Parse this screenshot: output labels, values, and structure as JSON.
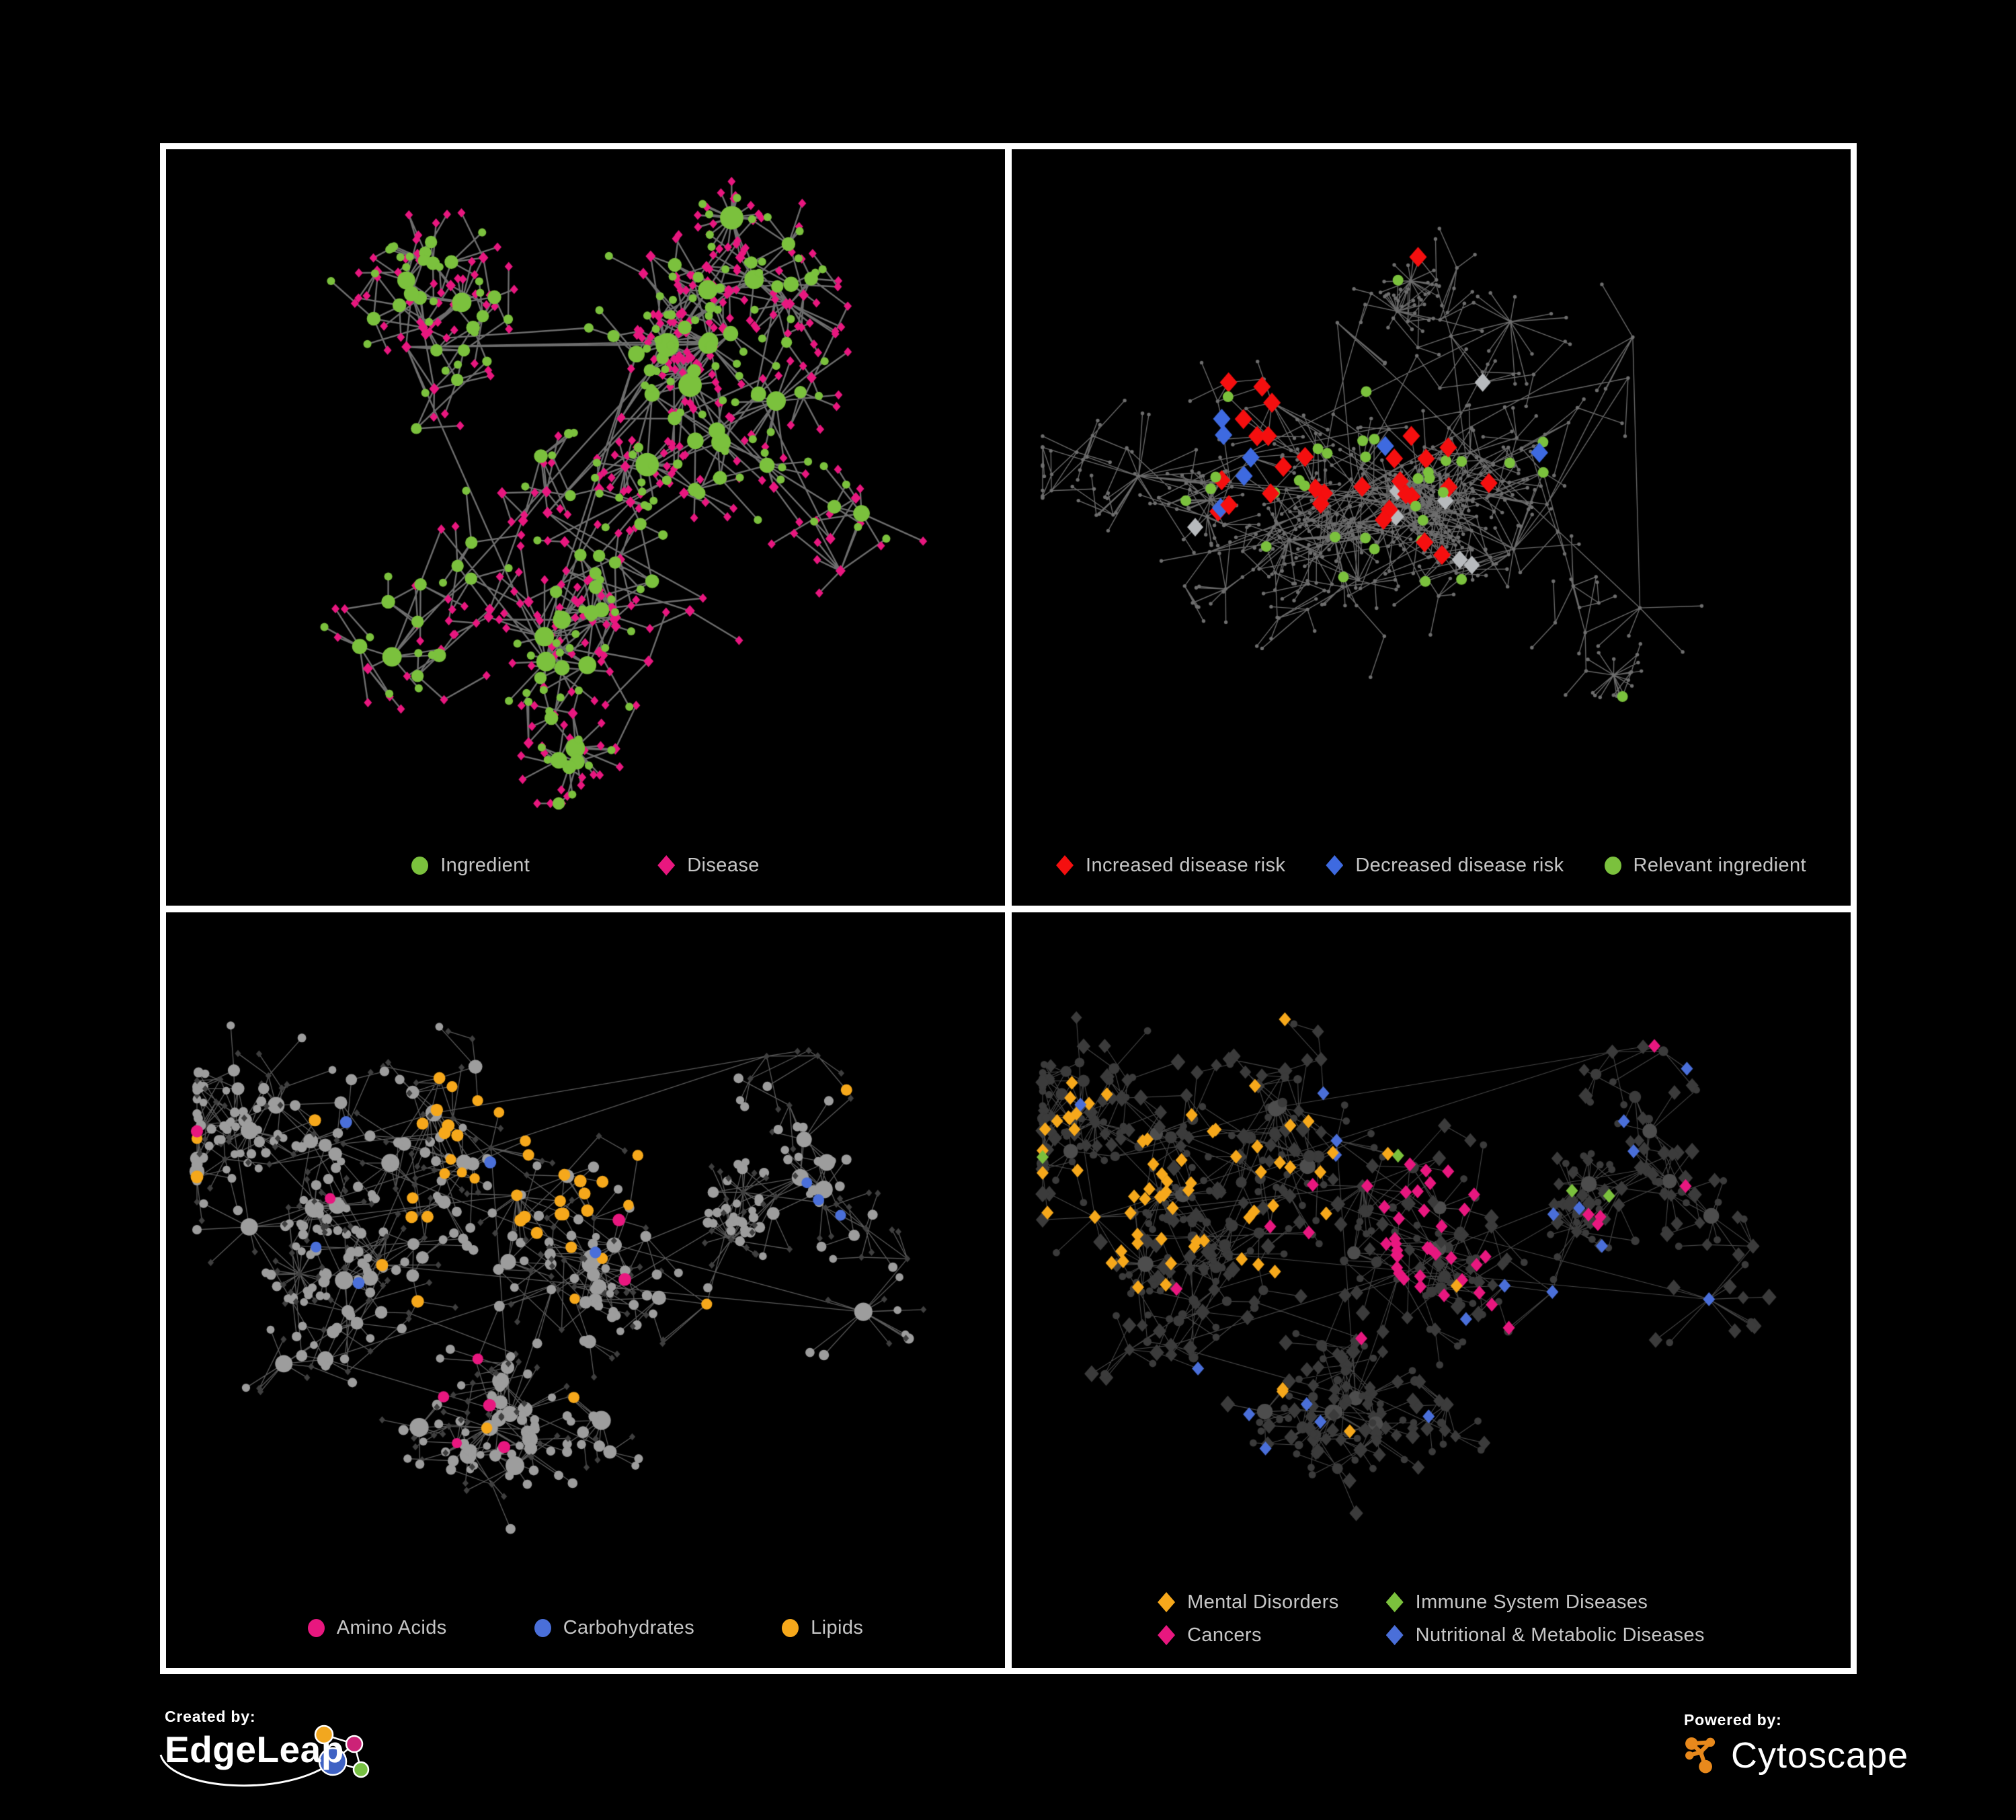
{
  "figure": {
    "bg": "#000000",
    "frame": "#ffffff",
    "legend_text_color": "#c6c6c6"
  },
  "panels": [
    {
      "id": "ingredient-disease-network",
      "legend": {
        "columns": 1,
        "items": [
          {
            "key": "ingredient",
            "shape": "circle",
            "color": "#7bc13d",
            "label": "Ingredient"
          },
          {
            "key": "disease",
            "shape": "diamond",
            "color": "#e8177f",
            "label": "Disease"
          }
        ]
      },
      "network": {
        "mode": "bipartite",
        "seed": 41,
        "styleSeed": 101,
        "nodes": 560,
        "hubs": 16,
        "branch": 4,
        "step": 74,
        "recurse": 0.55,
        "bursts": 5,
        "cross": 70,
        "edge": {
          "color": "#7a7a7a",
          "width": 2.4,
          "alpha": 0.9
        },
        "palette": {
          "ingredient": "#7bc13d",
          "disease": "#e8177f"
        }
      }
    },
    {
      "id": "disease-risk-network",
      "legend": {
        "columns": 1,
        "items": [
          {
            "key": "increased-risk",
            "shape": "diamond",
            "color": "#f50f0f",
            "label": "Increased disease risk"
          },
          {
            "key": "decreased-risk",
            "shape": "diamond",
            "color": "#3e6ae0",
            "label": "Decreased disease risk"
          },
          {
            "key": "relevant-ingredient",
            "shape": "circle",
            "color": "#7bc13d",
            "label": "Relevant ingredient"
          }
        ]
      },
      "network": {
        "mode": "risk",
        "seed": 77,
        "styleSeed": 202,
        "nodes": 680,
        "hubs": 18,
        "branch": 4,
        "step": 66,
        "recurse": 0.6,
        "bursts": 6,
        "cross": 60,
        "edge": {
          "color": "#6f6f6f",
          "width": 1.4,
          "alpha": 0.95
        },
        "palette": {
          "base": "#6e6e6e",
          "increased": "#f50f0f",
          "decreased": "#3e6ae0",
          "neutral": "#b7babd",
          "ingredient": "#7bc13d"
        },
        "counts": {
          "increased": 30,
          "decreased": 7,
          "neutral": 7,
          "ingredient": 34
        }
      }
    },
    {
      "id": "nutrient-class-network",
      "legend": {
        "columns": 1,
        "items": [
          {
            "key": "amino-acids",
            "shape": "circle",
            "color": "#e8177f",
            "label": "Amino Acids"
          },
          {
            "key": "carbohydrates",
            "shape": "circle",
            "color": "#4a6fd9",
            "label": "Carbohydrates"
          },
          {
            "key": "lipids",
            "shape": "circle",
            "color": "#f6a81b",
            "label": "Lipids"
          }
        ]
      },
      "network": {
        "mode": "nutrients",
        "seed": 63,
        "styleSeed": 303,
        "nodes": 620,
        "hubs": 17,
        "branch": 4,
        "step": 70,
        "recurse": 0.58,
        "bursts": 6,
        "cross": 80,
        "edge": {
          "color": "#6a6a6a",
          "width": 1.3,
          "alpha": 0.85
        },
        "palette": {
          "ingredient": "#9d9d9d",
          "disease": "#3f3f3f",
          "amino": "#e8177f",
          "carb": "#4a6fd9",
          "lipid": "#f6a81b"
        },
        "counts": {
          "amino": 24,
          "carb": 16,
          "lipid": 78
        }
      }
    },
    {
      "id": "disease-class-network",
      "legend": {
        "columns": 2,
        "items": [
          {
            "key": "mental-disorders",
            "shape": "diamond",
            "color": "#f6a81b",
            "label": "Mental Disorders"
          },
          {
            "key": "immune-system-diseases",
            "shape": "diamond",
            "color": "#7bc13d",
            "label": "Immune System Diseases"
          },
          {
            "key": "cancers",
            "shape": "diamond",
            "color": "#e8177f",
            "label": "Cancers"
          },
          {
            "key": "metabolic-diseases",
            "shape": "diamond",
            "color": "#4a6fd9",
            "label": "Nutritional & Metabolic Diseases"
          }
        ]
      },
      "network": {
        "mode": "diseases",
        "seed": 63,
        "styleSeed": 404,
        "nodes": 620,
        "hubs": 17,
        "branch": 4,
        "step": 70,
        "recurse": 0.58,
        "bursts": 6,
        "cross": 80,
        "edge": {
          "color": "#9b9b9b",
          "width": 1.1,
          "alpha": 0.45
        },
        "palette": {
          "base": "#3b3b3b",
          "hub": "#4d4d4d",
          "mental": "#f6a81b",
          "immune": "#7bc13d",
          "cancer": "#e8177f",
          "metabolic": "#4a6fd9"
        },
        "counts": {
          "mental": 80,
          "immune": 10,
          "cancer": 60,
          "metabolic": 65
        }
      }
    }
  ],
  "footer": {
    "created": {
      "label": "Created by:",
      "brand": "EdgeLeap",
      "logo_colors": {
        "blue": "#3f62c4",
        "orange": "#f2a71f",
        "magenta": "#cc2277",
        "green": "#77c043"
      }
    },
    "powered": {
      "label": "Powered by:",
      "brand": "Cytoscape",
      "icon_color": "#e8891c"
    }
  }
}
